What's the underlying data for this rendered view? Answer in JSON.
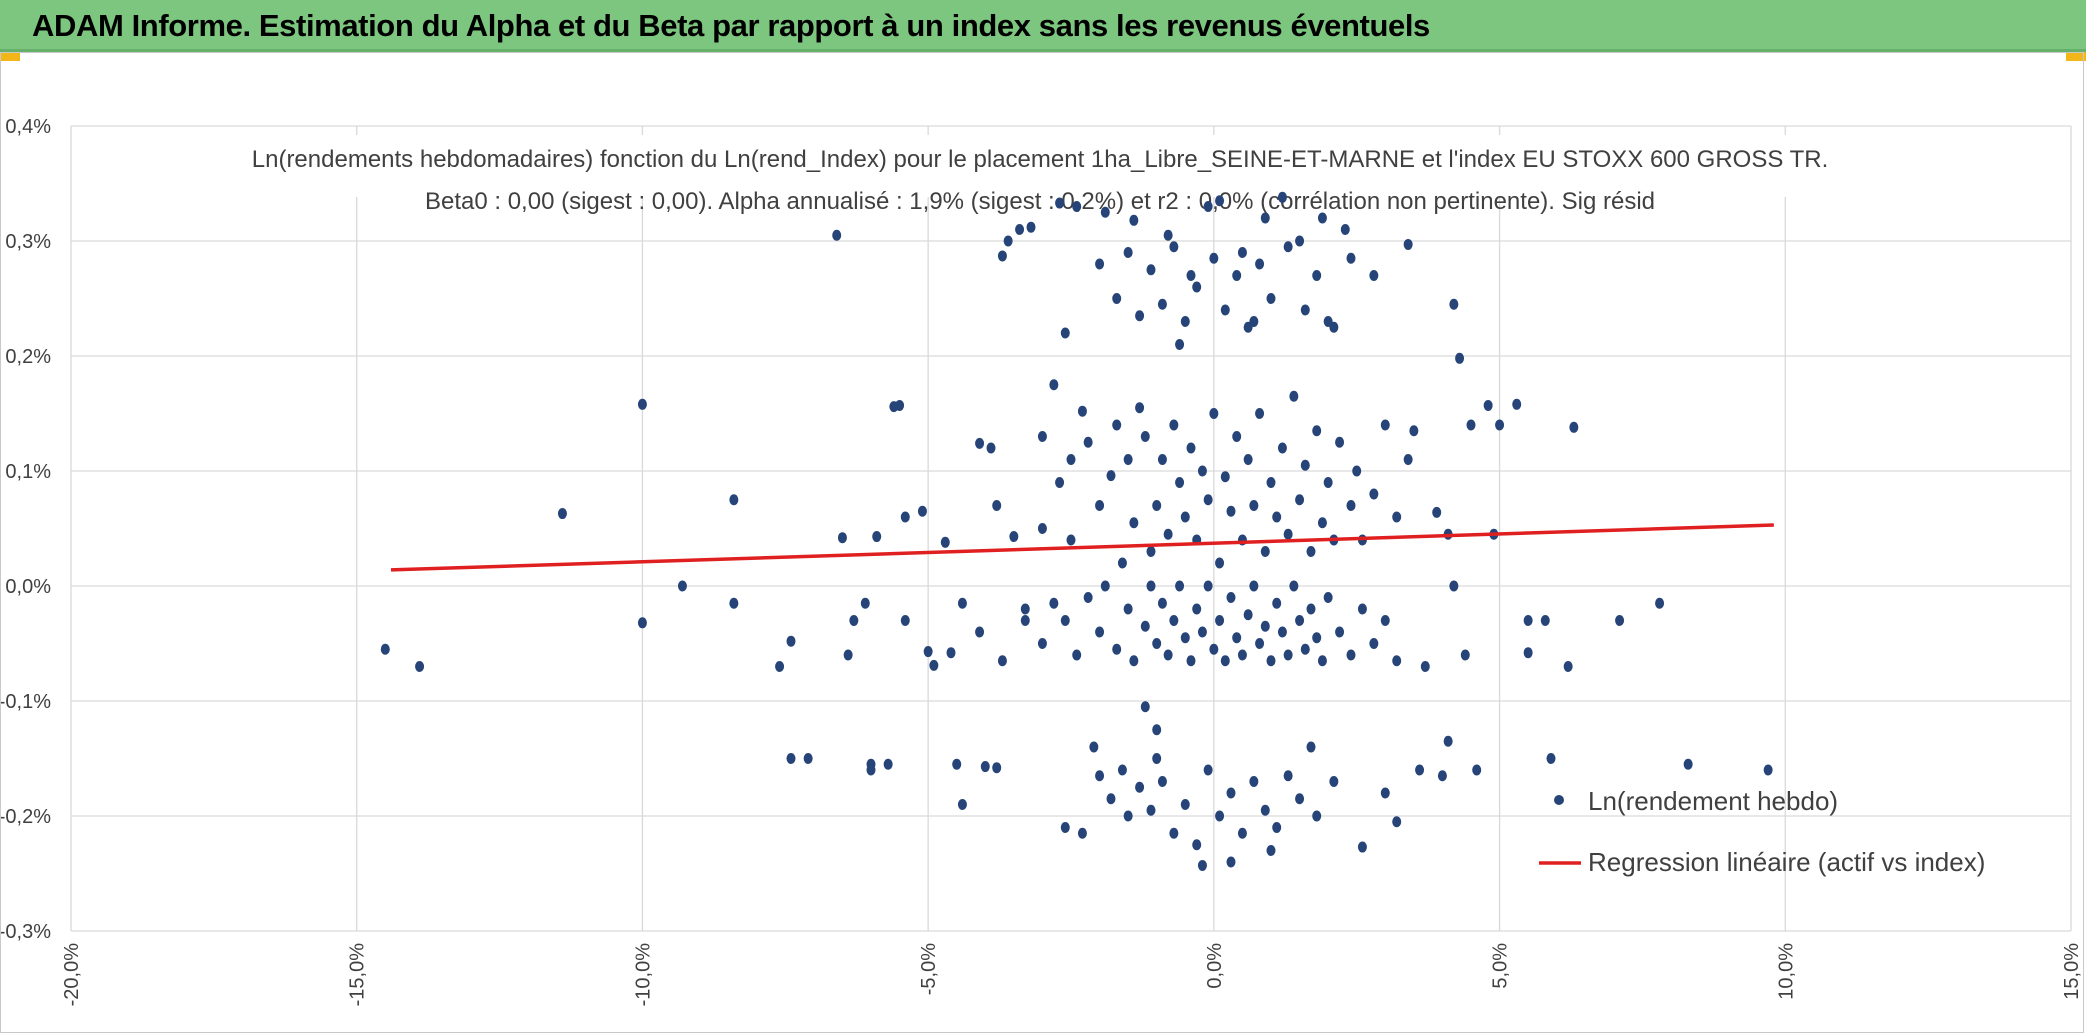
{
  "header": {
    "title": "ADAM Informe. Estimation du Alpha et du Beta par rapport à un index sans les revenus éventuels"
  },
  "colors": {
    "banner": "#7dc67f",
    "points": "#264478",
    "regression": "#e02020",
    "grid": "#d9d9d9",
    "accent": "#f2b619"
  },
  "chart_data": {
    "type": "scatter",
    "title_line1": "Ln(rendements hebdomadaires) fonction du Ln(rend_Index) pour le placement 1ha_Libre_SEINE-ET-MARNE et l'index EU STOXX 600 GROSS TR.",
    "title_line2": "Beta0 : 0,00 (sigest : 0,00). Alpha annualisé : 1,9% (sigest : 0,2%) et r2 : 0,0% (corrélation non pertinente). Sig résid",
    "x_range": [
      -20,
      15
    ],
    "y_range": [
      -0.3,
      0.4
    ],
    "x_unit": "percent",
    "y_unit": "percent",
    "x_ticks": [
      "-20,0%",
      "-15,0%",
      "-10,0%",
      "-5,0%",
      "0,0%",
      "5,0%",
      "10,0%",
      "15,0%"
    ],
    "y_ticks": [
      "0,4%",
      "0,3%",
      "0,2%",
      "0,1%",
      "0,0%",
      "-0,1%",
      "-0,2%",
      "-0,3%"
    ],
    "grid": true,
    "legend_position": "bottom-right",
    "legend": [
      "Ln(rendement hebdo)",
      "Regression linéaire (actif vs index)"
    ],
    "regression": {
      "name": "Regression linéaire (actif vs index)",
      "x": [
        -14.4,
        9.8
      ],
      "y": [
        0.014,
        0.053
      ]
    },
    "series": [
      {
        "name": "Ln(rendement hebdo)",
        "points": [
          [
            -14.5,
            -0.055
          ],
          [
            -13.9,
            -0.07
          ],
          [
            -11.4,
            0.063
          ],
          [
            -10.0,
            0.158
          ],
          [
            -10.0,
            -0.032
          ],
          [
            -9.3,
            0.0
          ],
          [
            -8.4,
            0.075
          ],
          [
            -8.4,
            -0.015
          ],
          [
            -7.6,
            -0.07
          ],
          [
            -7.4,
            -0.15
          ],
          [
            -7.4,
            -0.048
          ],
          [
            -7.1,
            -0.15
          ],
          [
            -6.6,
            0.305
          ],
          [
            -6.5,
            0.042
          ],
          [
            -6.4,
            -0.06
          ],
          [
            -6.3,
            -0.03
          ],
          [
            -6.1,
            -0.015
          ],
          [
            -6.0,
            -0.155
          ],
          [
            -6.0,
            -0.16
          ],
          [
            -5.9,
            0.043
          ],
          [
            -5.7,
            -0.155
          ],
          [
            -5.6,
            0.156
          ],
          [
            -5.5,
            0.157
          ],
          [
            -5.4,
            0.06
          ],
          [
            -5.4,
            -0.03
          ],
          [
            -5.1,
            0.065
          ],
          [
            -5.0,
            -0.057
          ],
          [
            -4.9,
            -0.069
          ],
          [
            -4.7,
            0.038
          ],
          [
            -4.6,
            -0.058
          ],
          [
            -4.5,
            -0.155
          ],
          [
            -4.4,
            -0.19
          ],
          [
            -4.4,
            -0.015
          ],
          [
            -4.1,
            0.124
          ],
          [
            -4.1,
            -0.04
          ],
          [
            -4.0,
            -0.157
          ],
          [
            -3.9,
            0.12
          ],
          [
            -3.8,
            0.07
          ],
          [
            -3.8,
            -0.158
          ],
          [
            -3.7,
            0.287
          ],
          [
            -3.7,
            -0.065
          ],
          [
            -3.6,
            0.3
          ],
          [
            -3.5,
            0.043
          ],
          [
            -3.4,
            0.31
          ],
          [
            -3.3,
            -0.03
          ],
          [
            -3.2,
            0.312
          ],
          [
            -3.0,
            0.05
          ],
          [
            -2.8,
            0.175
          ],
          [
            -2.7,
            0.333
          ],
          [
            -2.6,
            -0.21
          ],
          [
            -2.6,
            0.22
          ],
          [
            -2.4,
            0.33
          ],
          [
            -2.3,
            -0.215
          ],
          [
            -2.1,
            -0.14
          ],
          [
            -1.9,
            0.325
          ],
          [
            -1.6,
            -0.16
          ],
          [
            -1.4,
            0.318
          ],
          [
            -1.2,
            -0.105
          ],
          [
            -1.0,
            -0.15
          ],
          [
            -1.0,
            -0.125
          ],
          [
            -0.8,
            0.305
          ],
          [
            -0.6,
            0.21
          ],
          [
            -0.4,
            0.27
          ],
          [
            -0.2,
            -0.243
          ],
          [
            -0.1,
            0.33
          ],
          [
            0.1,
            0.335
          ],
          [
            0.3,
            -0.24
          ],
          [
            0.5,
            0.29
          ],
          [
            0.7,
            0.23
          ],
          [
            0.9,
            0.32
          ],
          [
            1.0,
            -0.23
          ],
          [
            1.2,
            0.338
          ],
          [
            1.5,
            0.3
          ],
          [
            1.7,
            -0.14
          ],
          [
            1.9,
            0.32
          ],
          [
            2.1,
            0.225
          ],
          [
            2.3,
            0.31
          ],
          [
            2.6,
            -0.227
          ],
          [
            2.8,
            0.27
          ],
          [
            3.0,
            -0.18
          ],
          [
            3.2,
            -0.205
          ],
          [
            3.4,
            0.297
          ],
          [
            3.5,
            0.135
          ],
          [
            3.6,
            -0.16
          ],
          [
            3.7,
            -0.07
          ],
          [
            3.9,
            0.064
          ],
          [
            4.0,
            -0.165
          ],
          [
            4.1,
            0.045
          ],
          [
            4.1,
            -0.135
          ],
          [
            4.2,
            0.245
          ],
          [
            4.2,
            0.0
          ],
          [
            4.3,
            0.198
          ],
          [
            4.4,
            -0.06
          ],
          [
            4.5,
            0.14
          ],
          [
            4.6,
            -0.16
          ],
          [
            4.8,
            0.157
          ],
          [
            4.9,
            0.045
          ],
          [
            5.0,
            0.14
          ],
          [
            5.3,
            0.158
          ],
          [
            5.5,
            -0.03
          ],
          [
            5.5,
            -0.058
          ],
          [
            5.8,
            -0.03
          ],
          [
            5.9,
            -0.15
          ],
          [
            6.2,
            -0.07
          ],
          [
            6.3,
            0.138
          ],
          [
            7.1,
            -0.03
          ],
          [
            7.8,
            -0.015
          ],
          [
            8.3,
            -0.155
          ],
          [
            9.7,
            -0.16
          ],
          [
            -3.0,
            0.13
          ],
          [
            -2.7,
            0.09
          ],
          [
            -2.5,
            0.11
          ],
          [
            -2.5,
            0.04
          ],
          [
            -2.3,
            0.152
          ],
          [
            -2.2,
            0.125
          ],
          [
            -2.0,
            0.07
          ],
          [
            -1.8,
            0.096
          ],
          [
            -1.7,
            0.14
          ],
          [
            -1.6,
            0.02
          ],
          [
            -1.5,
            0.11
          ],
          [
            -1.4,
            0.055
          ],
          [
            -1.3,
            0.155
          ],
          [
            -1.2,
            0.13
          ],
          [
            -1.1,
            0.03
          ],
          [
            -1.0,
            0.07
          ],
          [
            -0.9,
            0.11
          ],
          [
            -0.8,
            0.045
          ],
          [
            -0.7,
            0.14
          ],
          [
            -0.6,
            0.09
          ],
          [
            -0.5,
            0.06
          ],
          [
            -0.4,
            0.12
          ],
          [
            -0.3,
            0.04
          ],
          [
            -0.2,
            0.1
          ],
          [
            -0.1,
            0.075
          ],
          [
            0.0,
            0.15
          ],
          [
            0.1,
            0.02
          ],
          [
            0.2,
            0.095
          ],
          [
            0.3,
            0.065
          ],
          [
            0.4,
            0.13
          ],
          [
            0.5,
            0.04
          ],
          [
            0.6,
            0.11
          ],
          [
            0.7,
            0.07
          ],
          [
            0.8,
            0.15
          ],
          [
            0.9,
            0.03
          ],
          [
            1.0,
            0.09
          ],
          [
            1.1,
            0.06
          ],
          [
            1.2,
            0.12
          ],
          [
            1.3,
            0.045
          ],
          [
            1.4,
            0.165
          ],
          [
            1.5,
            0.075
          ],
          [
            1.6,
            0.105
          ],
          [
            1.7,
            0.03
          ],
          [
            1.8,
            0.135
          ],
          [
            1.9,
            0.055
          ],
          [
            2.0,
            0.09
          ],
          [
            2.1,
            0.04
          ],
          [
            2.2,
            0.125
          ],
          [
            2.4,
            0.07
          ],
          [
            2.5,
            0.1
          ],
          [
            2.6,
            0.04
          ],
          [
            2.8,
            0.08
          ],
          [
            3.0,
            0.14
          ],
          [
            3.2,
            0.06
          ],
          [
            3.4,
            0.11
          ],
          [
            -3.3,
            -0.02
          ],
          [
            -3.0,
            -0.05
          ],
          [
            -2.8,
            -0.015
          ],
          [
            -2.6,
            -0.03
          ],
          [
            -2.4,
            -0.06
          ],
          [
            -2.2,
            -0.01
          ],
          [
            -2.0,
            -0.04
          ],
          [
            -1.9,
            0.0
          ],
          [
            -1.7,
            -0.055
          ],
          [
            -1.5,
            -0.02
          ],
          [
            -1.4,
            -0.065
          ],
          [
            -1.2,
            -0.035
          ],
          [
            -1.1,
            0.0
          ],
          [
            -1.0,
            -0.05
          ],
          [
            -0.9,
            -0.015
          ],
          [
            -0.8,
            -0.06
          ],
          [
            -0.7,
            -0.03
          ],
          [
            -0.6,
            0.0
          ],
          [
            -0.5,
            -0.045
          ],
          [
            -0.4,
            -0.065
          ],
          [
            -0.3,
            -0.02
          ],
          [
            -0.2,
            -0.04
          ],
          [
            -0.1,
            0.0
          ],
          [
            0.0,
            -0.055
          ],
          [
            0.1,
            -0.03
          ],
          [
            0.2,
            -0.065
          ],
          [
            0.3,
            -0.01
          ],
          [
            0.4,
            -0.045
          ],
          [
            0.5,
            -0.06
          ],
          [
            0.6,
            -0.025
          ],
          [
            0.7,
            0.0
          ],
          [
            0.8,
            -0.05
          ],
          [
            0.9,
            -0.035
          ],
          [
            1.0,
            -0.065
          ],
          [
            1.1,
            -0.015
          ],
          [
            1.2,
            -0.04
          ],
          [
            1.3,
            -0.06
          ],
          [
            1.4,
            0.0
          ],
          [
            1.5,
            -0.03
          ],
          [
            1.6,
            -0.055
          ],
          [
            1.7,
            -0.02
          ],
          [
            1.8,
            -0.045
          ],
          [
            1.9,
            -0.065
          ],
          [
            2.0,
            -0.01
          ],
          [
            2.2,
            -0.04
          ],
          [
            2.4,
            -0.06
          ],
          [
            2.6,
            -0.02
          ],
          [
            2.8,
            -0.05
          ],
          [
            3.0,
            -0.03
          ],
          [
            3.2,
            -0.065
          ],
          [
            -2.0,
            -0.165
          ],
          [
            -1.8,
            -0.185
          ],
          [
            -1.5,
            -0.2
          ],
          [
            -1.3,
            -0.175
          ],
          [
            -1.1,
            -0.195
          ],
          [
            -0.9,
            -0.17
          ],
          [
            -0.7,
            -0.215
          ],
          [
            -0.5,
            -0.19
          ],
          [
            -0.3,
            -0.225
          ],
          [
            -0.1,
            -0.16
          ],
          [
            0.1,
            -0.2
          ],
          [
            0.3,
            -0.18
          ],
          [
            0.5,
            -0.215
          ],
          [
            0.7,
            -0.17
          ],
          [
            0.9,
            -0.195
          ],
          [
            1.1,
            -0.21
          ],
          [
            1.3,
            -0.165
          ],
          [
            1.5,
            -0.185
          ],
          [
            1.8,
            -0.2
          ],
          [
            2.1,
            -0.17
          ],
          [
            -2.0,
            0.28
          ],
          [
            -1.7,
            0.25
          ],
          [
            -1.5,
            0.29
          ],
          [
            -1.3,
            0.235
          ],
          [
            -1.1,
            0.275
          ],
          [
            -0.9,
            0.245
          ],
          [
            -0.7,
            0.295
          ],
          [
            -0.5,
            0.23
          ],
          [
            -0.3,
            0.26
          ],
          [
            0.0,
            0.285
          ],
          [
            0.2,
            0.24
          ],
          [
            0.4,
            0.27
          ],
          [
            0.6,
            0.225
          ],
          [
            0.8,
            0.28
          ],
          [
            1.0,
            0.25
          ],
          [
            1.3,
            0.295
          ],
          [
            1.6,
            0.24
          ],
          [
            1.8,
            0.27
          ],
          [
            2.0,
            0.23
          ],
          [
            2.4,
            0.285
          ]
        ]
      }
    ]
  }
}
